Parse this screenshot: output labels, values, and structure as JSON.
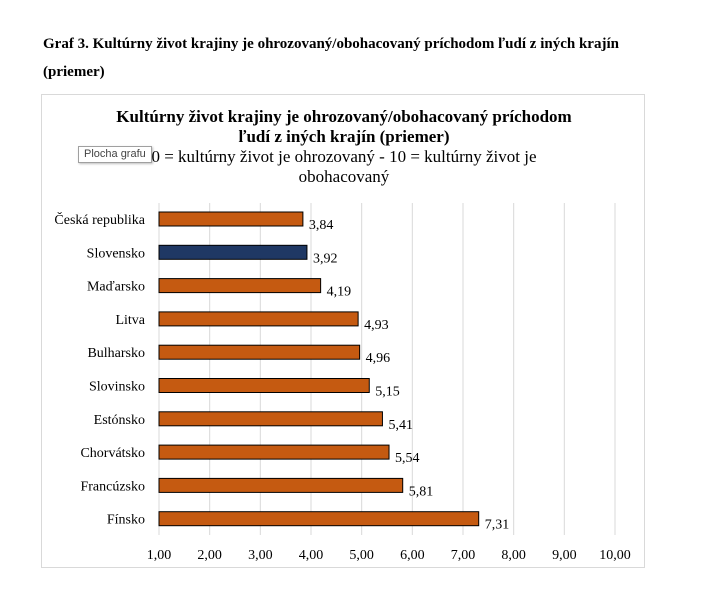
{
  "document": {
    "caption": "Graf 3. Kultúrny život krajiny je ohrozovaný/obohacovaný príchodom ľudí z iných krajín (priemer)"
  },
  "tooltip": {
    "text": "Plocha grafu"
  },
  "chart_data": {
    "type": "bar",
    "orientation": "horizontal",
    "title_lines": [
      "Kultúrny život krajiny je ohrozovaný/obohacovaný príchodom",
      "ľudí z iných krajín (priemer)"
    ],
    "subtitle_lines": [
      "0 = kultúrny život je ohrozovaný - 10 = kultúrny život je",
      "obohacovaný"
    ],
    "categories": [
      "Česká republika",
      "Slovensko",
      "Maďarsko",
      "Litva",
      "Bulharsko",
      "Slovinsko",
      "Estónsko",
      "Chorvátsko",
      "Francúzsko",
      "Fínsko"
    ],
    "values": [
      3.84,
      3.92,
      4.19,
      4.93,
      4.96,
      5.15,
      5.41,
      5.54,
      5.81,
      7.31
    ],
    "value_labels": [
      "3,84",
      "3,92",
      "4,19",
      "4,93",
      "4,96",
      "5,15",
      "5,41",
      "5,54",
      "5,81",
      "7,31"
    ],
    "highlight_category": "Slovensko",
    "x_ticks": [
      1,
      2,
      3,
      4,
      5,
      6,
      7,
      8,
      9,
      10
    ],
    "x_tick_labels": [
      "1,00",
      "2,00",
      "3,00",
      "4,00",
      "5,00",
      "6,00",
      "7,00",
      "8,00",
      "9,00",
      "10,00"
    ],
    "xlim": [
      1,
      10
    ],
    "grid": true,
    "legend": "none",
    "colors": {
      "bar": "#c55a11",
      "highlight": "#1f3864",
      "bar_edge": "#000000",
      "grid": "#d9d9d9"
    }
  }
}
